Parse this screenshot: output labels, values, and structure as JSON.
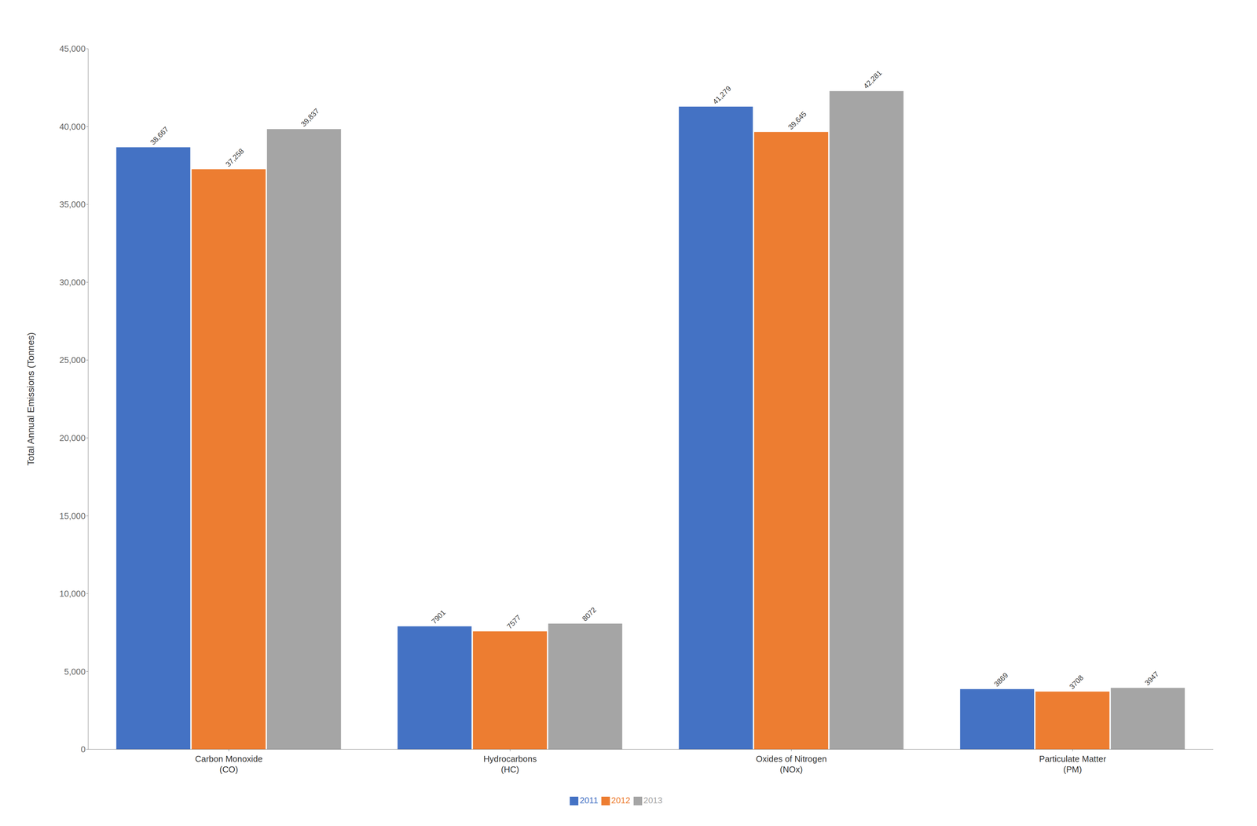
{
  "chart_data": {
    "type": "bar",
    "categories": [
      "Carbon Monoxide\n(CO)",
      "Hydrocarbons\n(HC)",
      "Oxides of Nitrogen\n(NOx)",
      "Particulate Matter\n(PM)"
    ],
    "series": [
      {
        "name": "2011",
        "color": "#4472C4",
        "values": [
          38667,
          7901,
          41279,
          3869
        ],
        "value_labels": [
          "38,667",
          "7901",
          "41,279",
          "3869"
        ]
      },
      {
        "name": "2012",
        "color": "#ED7D31",
        "values": [
          37258,
          7577,
          39645,
          3708
        ],
        "value_labels": [
          "37,258",
          "7577",
          "39,645",
          "3708"
        ]
      },
      {
        "name": "2013",
        "color": "#A5A5A5",
        "values": [
          39837,
          8072,
          42281,
          3947
        ],
        "value_labels": [
          "39,837",
          "8072",
          "42,281",
          "3947"
        ]
      }
    ],
    "ylabel": "Total Annual Emissions (Tonnes)",
    "ylim": [
      0,
      45000
    ],
    "yticks": [
      0,
      {
        "value": 5000,
        "label": "5,000"
      },
      {
        "value": 10000,
        "label": "10,000"
      },
      {
        "value": 15000,
        "label": "15,000"
      },
      {
        "value": 20000,
        "label": "20,000"
      },
      {
        "value": 25000,
        "label": "25,000"
      },
      {
        "value": 30000,
        "label": "30,000"
      },
      {
        "value": 35000,
        "label": "35,000"
      },
      {
        "value": 40000,
        "label": "40,000"
      },
      {
        "value": 45000,
        "label": "45,000"
      }
    ],
    "grid": false,
    "legend": "bottom",
    "data_labels": true
  }
}
